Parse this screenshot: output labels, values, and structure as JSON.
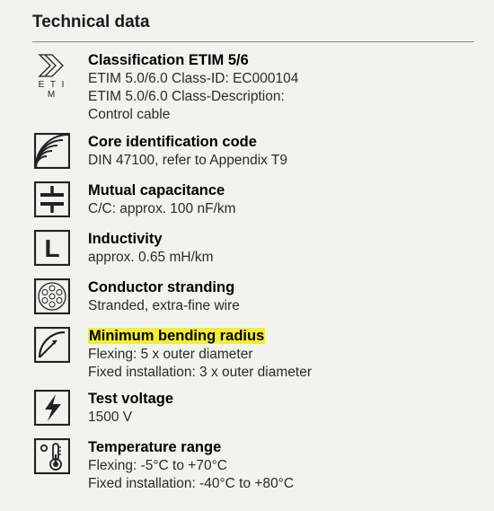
{
  "colors": {
    "background": "#f3f3ed",
    "text": "#1a1a1a",
    "text_secondary": "#4a4a4a",
    "divider": "#888888",
    "icon_border": "#222222",
    "highlight": "#f1ed3a"
  },
  "typography": {
    "header_fontsize_pt": 14,
    "title_fontsize_pt": 12,
    "body_fontsize_pt": 11.5,
    "font_family": "Arial"
  },
  "header": {
    "title": "Technical data"
  },
  "entries": [
    {
      "icon": "etim",
      "title": "Classification ETIM 5/6",
      "highlight": false,
      "lines": [
        "ETIM 5.0/6.0 Class-ID: EC000104",
        "ETIM 5.0/6.0 Class-Description:",
        "Control cable"
      ]
    },
    {
      "icon": "core-id",
      "title": "Core identification code",
      "highlight": false,
      "lines": [
        "DIN 47100, refer to Appendix T9"
      ]
    },
    {
      "icon": "capacitance",
      "title": "Mutual capacitance",
      "highlight": false,
      "lines": [
        "C/C: approx. 100 nF/km"
      ]
    },
    {
      "icon": "inductance",
      "title": "Inductivity",
      "highlight": false,
      "lines": [
        "approx. 0.65 mH/km"
      ]
    },
    {
      "icon": "stranding",
      "title": "Conductor stranding",
      "highlight": false,
      "lines": [
        "Stranded, extra-fine wire"
      ]
    },
    {
      "icon": "bend-radius",
      "title": "Minimum bending radius",
      "highlight": true,
      "lines": [
        "Flexing: 5 x outer diameter",
        "Fixed installation: 3 x outer diameter"
      ]
    },
    {
      "icon": "test-voltage",
      "title": "Test voltage",
      "highlight": false,
      "lines": [
        "1500 V"
      ]
    },
    {
      "icon": "temperature",
      "title": "Temperature range",
      "highlight": false,
      "lines": [
        "Flexing: -5°C to +70°C",
        "Fixed installation: -40°C to +80°C"
      ]
    }
  ],
  "etim_label": "E T I M"
}
